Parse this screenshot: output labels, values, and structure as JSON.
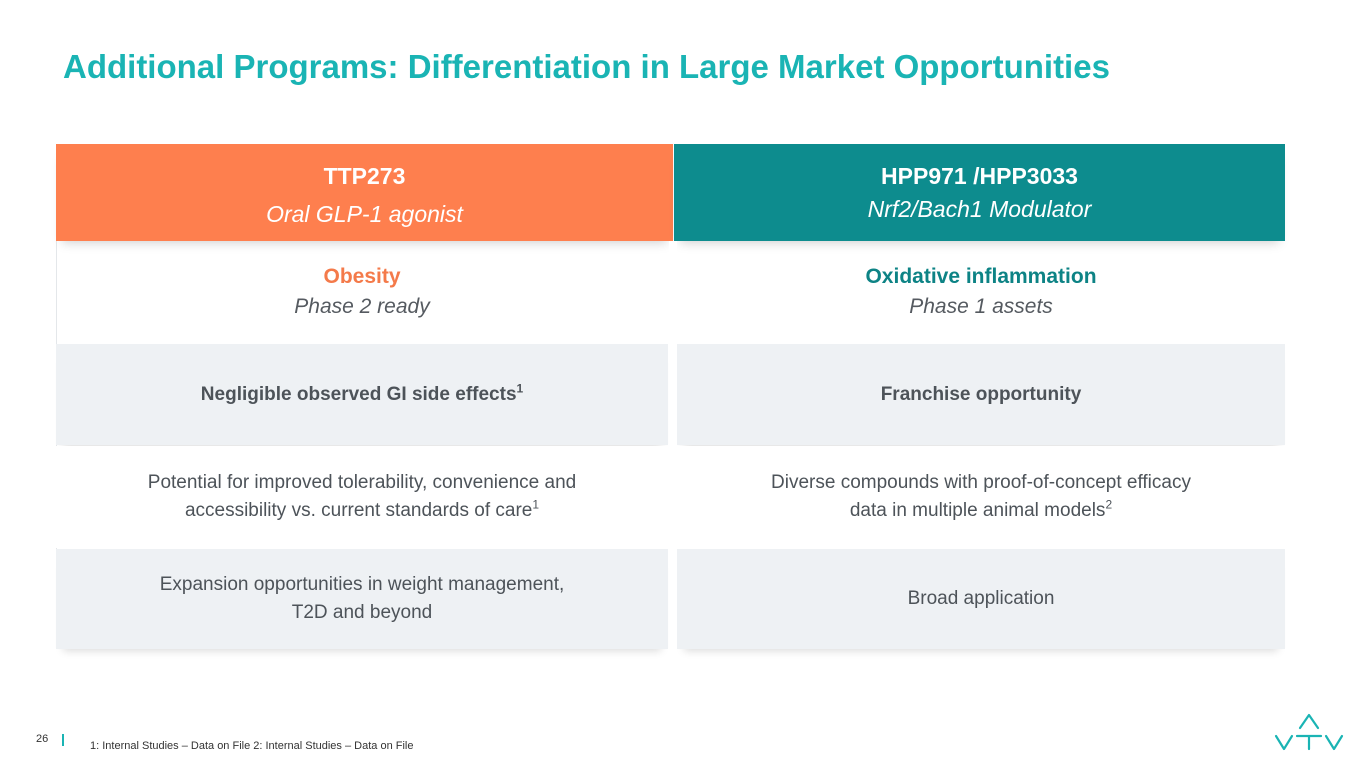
{
  "title": "Additional Programs: Differentiation in Large Market Opportunities",
  "columns": [
    {
      "name": "TTP273",
      "subtitle": "Oral GLP-1 agonist",
      "indication": "Obesity",
      "phase": "Phase 2 ready",
      "feature": "Negligible observed GI side effects",
      "feature_sup": "1",
      "detail_line1": "Potential for improved tolerability, convenience and",
      "detail_line2": "accessibility vs. current standards of care",
      "detail_sup": "1",
      "expansion_line1": "Expansion opportunities in weight management,",
      "expansion_line2": "T2D and beyond"
    },
    {
      "name": "HPP971 /HPP3033",
      "subtitle": "Nrf2/Bach1 Modulator",
      "indication": "Oxidative inflammation",
      "phase": "Phase 1 assets",
      "feature": "Franchise opportunity",
      "detail_line1": "Diverse compounds with proof-of-concept efficacy",
      "detail_line2": "data in multiple animal models",
      "detail_sup": "2",
      "expansion_line1": "Broad application"
    }
  ],
  "footer": {
    "page_number": "26",
    "notes": "1: Internal Studies – Data on File  2: Internal Studies – Data on File"
  },
  "logo_icon": "vtv-logo-icon",
  "colors": {
    "title": "#1ab4b4",
    "left_header": "#fe7f4e",
    "right_header": "#0d8c8e",
    "row_shade": "#eef1f4"
  }
}
